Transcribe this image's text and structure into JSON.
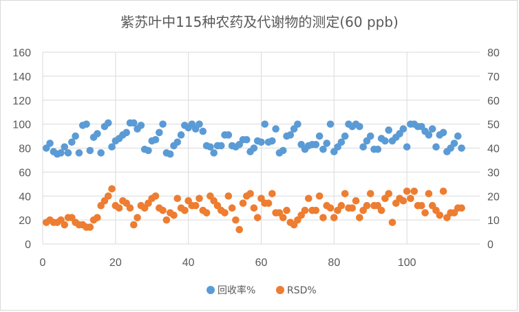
{
  "chart_data": {
    "type": "scatter",
    "title": "紫苏叶中115种农药及代谢物的测定(60 ppb)",
    "xlabel": "",
    "ylabel": "",
    "xlim": [
      0,
      120
    ],
    "ylim_left": [
      0,
      160
    ],
    "ylim_right": [
      0,
      80
    ],
    "x_ticks": [
      0,
      20,
      40,
      60,
      80,
      100
    ],
    "y_ticks_left": [
      0,
      20,
      40,
      60,
      80,
      100,
      120,
      140,
      160
    ],
    "y_ticks_right": [
      0,
      10,
      20,
      30,
      40,
      50,
      60,
      70,
      80
    ],
    "grid": true,
    "legend_position": "bottom",
    "colors": {
      "recovery": "#5b9bd5",
      "rsd": "#ed7d31",
      "text": "#595959",
      "grid": "#d9d9d9"
    },
    "series": [
      {
        "name": "回收率%",
        "axis": "left",
        "color": "#5b9bd5",
        "x": [
          1,
          2,
          3,
          4,
          5,
          6,
          7,
          8,
          9,
          10,
          11,
          12,
          13,
          14,
          15,
          16,
          17,
          18,
          19,
          20,
          21,
          22,
          23,
          24,
          25,
          26,
          27,
          28,
          29,
          30,
          31,
          32,
          33,
          34,
          35,
          36,
          37,
          38,
          39,
          40,
          41,
          42,
          43,
          44,
          45,
          46,
          47,
          48,
          49,
          50,
          51,
          52,
          53,
          54,
          55,
          56,
          57,
          58,
          59,
          60,
          61,
          62,
          63,
          64,
          65,
          66,
          67,
          68,
          69,
          70,
          71,
          72,
          73,
          74,
          75,
          76,
          77,
          78,
          79,
          80,
          81,
          82,
          83,
          84,
          85,
          86,
          87,
          88,
          89,
          90,
          91,
          92,
          93,
          94,
          95,
          96,
          97,
          98,
          99,
          100,
          101,
          102,
          103,
          104,
          105,
          106,
          107,
          108,
          109,
          110,
          111,
          112,
          113,
          114,
          115
        ],
        "y": [
          80,
          84,
          77,
          75,
          76,
          81,
          76,
          85,
          90,
          76,
          99,
          100,
          78,
          89,
          92,
          76,
          98,
          101,
          81,
          86,
          88,
          91,
          93,
          101,
          101,
          96,
          99,
          79,
          78,
          86,
          87,
          93,
          100,
          76,
          75,
          82,
          85,
          91,
          99,
          97,
          100,
          96,
          100,
          94,
          82,
          81,
          76,
          82,
          82,
          91,
          91,
          82,
          81,
          83,
          87,
          87,
          77,
          80,
          86,
          85,
          100,
          85,
          86,
          96,
          76,
          78,
          90,
          91,
          96,
          100,
          83,
          79,
          82,
          83,
          83,
          90,
          79,
          84,
          100,
          77,
          81,
          85,
          90,
          100,
          98,
          100,
          98,
          81,
          86,
          90,
          79,
          79,
          88,
          86,
          95,
          86,
          89,
          92,
          96,
          81,
          100,
          100,
          98,
          98,
          94,
          91,
          96,
          81,
          91,
          93,
          77,
          80,
          84,
          90,
          80
        ]
      },
      {
        "name": "RSD%",
        "axis": "right",
        "color": "#ed7d31",
        "x": [
          1,
          2,
          3,
          4,
          5,
          6,
          7,
          8,
          9,
          10,
          11,
          12,
          13,
          14,
          15,
          16,
          17,
          18,
          19,
          20,
          21,
          22,
          23,
          24,
          25,
          26,
          27,
          28,
          29,
          30,
          31,
          32,
          33,
          34,
          35,
          36,
          37,
          38,
          39,
          40,
          41,
          42,
          43,
          44,
          45,
          46,
          47,
          48,
          49,
          50,
          51,
          52,
          53,
          54,
          55,
          56,
          57,
          58,
          59,
          60,
          61,
          62,
          63,
          64,
          65,
          66,
          67,
          68,
          69,
          70,
          71,
          72,
          73,
          74,
          75,
          76,
          77,
          78,
          79,
          80,
          81,
          82,
          83,
          84,
          85,
          86,
          87,
          88,
          89,
          90,
          91,
          92,
          93,
          94,
          95,
          96,
          97,
          98,
          99,
          100,
          101,
          102,
          103,
          104,
          105,
          106,
          107,
          108,
          109,
          110,
          111,
          112,
          113,
          114,
          115
        ],
        "y": [
          9,
          10,
          9,
          9,
          10,
          8,
          11,
          11,
          9,
          8,
          8,
          7,
          7,
          10,
          11,
          16,
          18,
          20,
          23,
          16,
          15,
          18,
          17,
          15,
          8,
          11,
          16,
          15,
          17,
          19,
          20,
          15,
          14,
          10,
          13,
          12,
          19,
          15,
          14,
          18,
          16,
          16,
          19,
          14,
          13,
          20,
          18,
          16,
          14,
          13,
          20,
          15,
          10,
          6,
          17,
          20,
          21,
          15,
          11,
          19,
          17,
          17,
          21,
          13,
          13,
          11,
          14,
          9,
          8,
          10,
          12,
          14,
          19,
          14,
          14,
          20,
          11,
          16,
          15,
          11,
          14,
          16,
          21,
          15,
          15,
          18,
          11,
          14,
          16,
          21,
          16,
          16,
          14,
          19,
          21,
          9,
          17,
          19,
          18,
          22,
          19,
          22,
          16,
          16,
          13,
          21,
          16,
          14,
          12,
          22,
          11,
          13,
          13,
          15,
          15
        ]
      }
    ]
  }
}
